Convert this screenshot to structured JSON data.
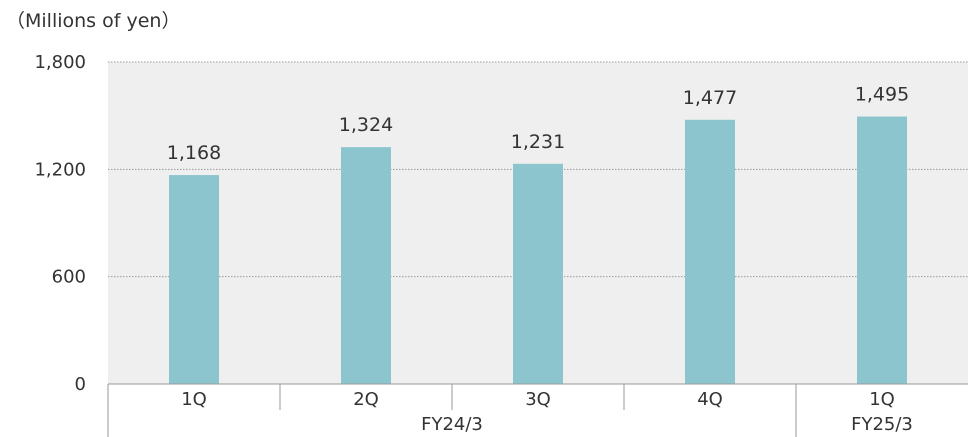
{
  "chart_data": {
    "type": "bar",
    "unit_label": "（Millions of yen）",
    "categories": [
      "1Q",
      "2Q",
      "3Q",
      "4Q",
      "1Q"
    ],
    "values": [
      1168,
      1324,
      1231,
      1477,
      1495
    ],
    "data_labels": [
      "1,168",
      "1,324",
      "1,231",
      "1,477",
      "1,495"
    ],
    "groups": [
      {
        "label": "FY24/3",
        "span": 4
      },
      {
        "label": "FY25/3",
        "span": 1
      }
    ],
    "yticks": [
      {
        "value": 0,
        "label": "0"
      },
      {
        "value": 600,
        "label": "600"
      },
      {
        "value": 1200,
        "label": "1,200"
      },
      {
        "value": 1800,
        "label": "1,800"
      }
    ],
    "ylim": [
      0,
      1800
    ],
    "grid": true,
    "colors": {
      "bar": "#8cc5ce",
      "plot_bg": "#efefef",
      "grid": "#999999",
      "axis": "#9a9a9a"
    }
  }
}
